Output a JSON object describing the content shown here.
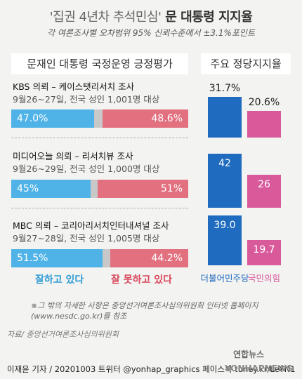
{
  "header": {
    "title_quoted": "'집권 4년차 추석민심'",
    "title_rest": "문 대통령 지지율",
    "subtitle": "각 여론조사별 오차범위 95% 신뢰수준에서 ±3.1%포인트"
  },
  "colors": {
    "approve": "#4fb3e8",
    "disapprove": "#e2707f",
    "neutral": "#c8c8c8",
    "party1": "#1f6bbf",
    "party2": "#d85a9b"
  },
  "left_panel": {
    "heading": "문재인 대통령 국정운영 긍정평가"
  },
  "right_panel": {
    "heading": "주요 정당지지율"
  },
  "polls": [
    {
      "title": "KBS 의뢰 – 케이스탯리서치 조사",
      "date": "9월26~27일, 전국 성인 1,001명 대상",
      "approve_label": "47.0%",
      "disapprove_label": "48.6%"
    },
    {
      "title": "미디어오늘 의뢰 – 리서치뷰 조사",
      "date": "9월26~29일, 전국 성인 1,000명 대상",
      "approve_label": "45%",
      "disapprove_label": "51%"
    },
    {
      "title": "MBC 의뢰 – 코리아리서치인터내셔널 조사",
      "date": "9월27~28일, 전국 성인 1,005명 대상",
      "approve_label": "51.5%",
      "disapprove_label": "44.2%"
    }
  ],
  "legend": {
    "approve": "잘하고 있다",
    "disapprove": "잘 못하고 있다"
  },
  "parties": {
    "party1": "더불어민주당",
    "party2": "국민의힘"
  },
  "party_labels": [
    {
      "party1": "31.7%",
      "party2": "20.6%"
    },
    {
      "party1": "42",
      "party2": "26"
    },
    {
      "party1": "39.0",
      "party2": "19.7"
    }
  ],
  "footer": {
    "note_line1": "※그 밖의 자세한 사항은 중앙선거여론조사심의위원회 인터넷 홈페이지",
    "note_line2": "(www.nesdc.go.kr)를 참조",
    "source": "자료/ 중앙선거여론조사심의위원회",
    "brand": "연합뉴스",
    "credit": "이재윤 기자 / 20201003   트위터 @yonhap_graphics  페이스북 tuney.kr/LeYN1",
    "watermark": "YONHAPNEWS"
  },
  "chart_data": [
    {
      "type": "bar",
      "title": "문재인 대통령 국정운영 긍정평가",
      "categories": [
        "KBS 의뢰 – 케이스탯리서치 조사",
        "미디어오늘 의뢰 – 리서치뷰 조사",
        "MBC 의뢰 – 코리아리서치인터내셔널 조사"
      ],
      "series": [
        {
          "name": "잘하고 있다",
          "values": [
            47.0,
            45,
            51.5
          ]
        },
        {
          "name": "잘 못하고 있다",
          "values": [
            48.6,
            51,
            44.2
          ]
        }
      ],
      "stacked": true,
      "orientation": "horizontal",
      "xlim": [
        0,
        100
      ]
    },
    {
      "type": "bar",
      "title": "주요 정당지지율",
      "categories": [
        "KBS 의뢰 – 케이스탯리서치 조사",
        "미디어오늘 의뢰 – 리서치뷰 조사",
        "MBC 의뢰 – 코리아리서치인터내셔널 조사"
      ],
      "series": [
        {
          "name": "더불어민주당",
          "values": [
            31.7,
            42,
            39.0
          ]
        },
        {
          "name": "국민의힘",
          "values": [
            20.6,
            26,
            19.7
          ]
        }
      ],
      "ylim": [
        0,
        45
      ]
    }
  ]
}
